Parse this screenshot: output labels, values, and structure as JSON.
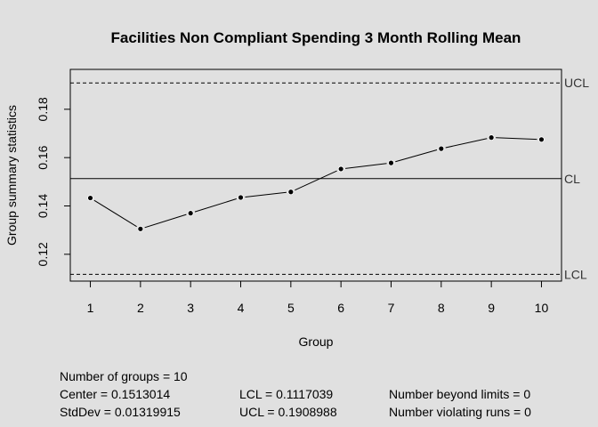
{
  "chart_data": {
    "type": "line",
    "title": "Facilities Non Compliant Spending 3 Month Rolling Mean",
    "xlabel": "Group",
    "ylabel": "Group summary statistics",
    "x": [
      1,
      2,
      3,
      4,
      5,
      6,
      7,
      8,
      9,
      10
    ],
    "values": [
      0.1433,
      0.1305,
      0.137,
      0.1435,
      0.1458,
      0.1553,
      0.1578,
      0.1637,
      0.1683,
      0.1675
    ],
    "xticks": [
      "1",
      "2",
      "3",
      "4",
      "5",
      "6",
      "7",
      "8",
      "9",
      "10"
    ],
    "yticks": [
      "0.12",
      "0.14",
      "0.16",
      "0.18"
    ],
    "ytick_values": [
      0.12,
      0.14,
      0.16,
      0.18
    ],
    "xlim": [
      0.6,
      10.4
    ],
    "ylim": [
      0.1089,
      0.1965
    ],
    "center": 0.1513014,
    "lcl": 0.1117039,
    "ucl": 0.1908988,
    "center_label": "CL",
    "lcl_label": "LCL",
    "ucl_label": "UCL"
  },
  "stats": {
    "groups": "Number of groups = 10",
    "center": "Center = 0.1513014",
    "stddev": "StdDev = 0.01319915",
    "lcl": "LCL = 0.1117039",
    "ucl": "UCL = 0.1908988",
    "beyond": "Number beyond limits = 0",
    "violating": "Number violating runs = 0"
  }
}
